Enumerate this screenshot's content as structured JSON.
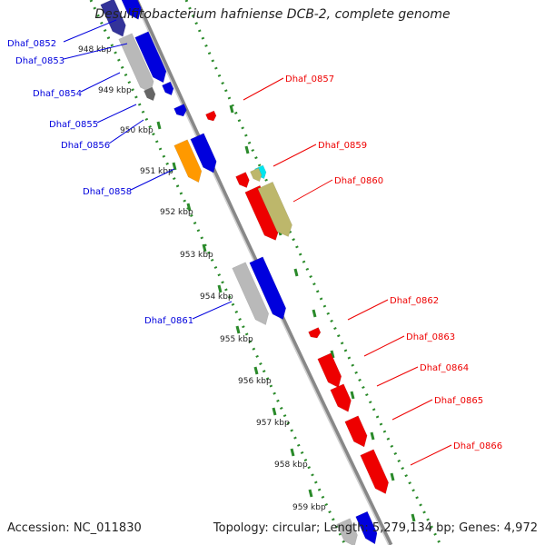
{
  "title": "Desulfitobacterium hafniense DCB-2, complete genome",
  "footer": {
    "accession": "Accession: NC_011830",
    "summary": "Topology: circular; Length: 5,279,134 bp; Genes: 4,972"
  },
  "ruler_labels": [
    "948 kbp",
    "949 kbp",
    "950 kbp",
    "951 kbp",
    "952 kbp",
    "953 kbp",
    "954 kbp",
    "955 kbp",
    "956 kbp",
    "957 kbp",
    "958 kbp",
    "959 kbp"
  ],
  "colors": {
    "blue": "#0000dd",
    "red": "#ee0000",
    "grey": "#b9b9b9",
    "darkgrey": "#666666",
    "navy": "#333399",
    "orange": "#ff9900",
    "cyan": "#00e5ee",
    "khaki": "#bdb76b",
    "ruler": "#2a8a2a",
    "backbone": "#888888"
  },
  "genes_left": [
    {
      "label": "Dhaf_0852"
    },
    {
      "label": "Dhaf_0853"
    },
    {
      "label": "Dhaf_0854"
    },
    {
      "label": "Dhaf_0855"
    },
    {
      "label": "Dhaf_0856"
    },
    {
      "label": "Dhaf_0858"
    },
    {
      "label": "Dhaf_0861"
    }
  ],
  "genes_right": [
    {
      "label": "Dhaf_0857"
    },
    {
      "label": "Dhaf_0859"
    },
    {
      "label": "Dhaf_0860"
    },
    {
      "label": "Dhaf_0862"
    },
    {
      "label": "Dhaf_0863"
    },
    {
      "label": "Dhaf_0864"
    },
    {
      "label": "Dhaf_0865"
    },
    {
      "label": "Dhaf_0866"
    }
  ]
}
